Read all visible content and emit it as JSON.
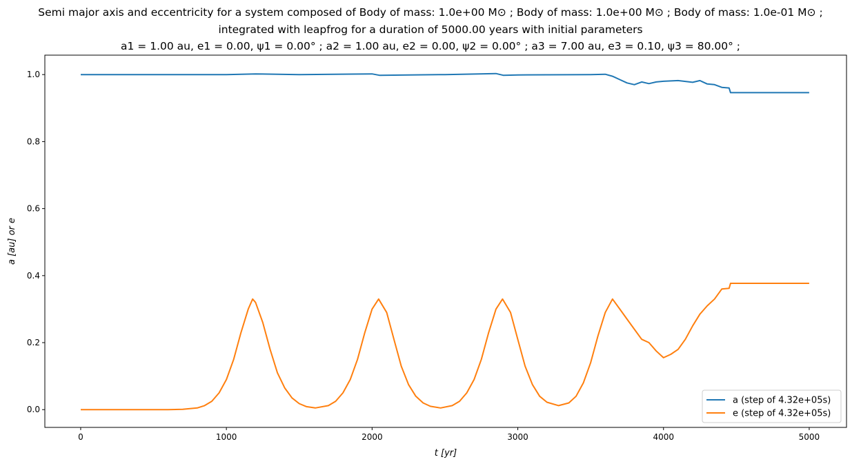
{
  "chart_data": {
    "type": "line",
    "title_lines": [
      "Semi major axis and eccentricity for a system composed of Body of mass: 1.0e+00 M⊙ ; Body of mass: 1.0e+00 M⊙ ; Body of mass: 1.0e-01 M⊙ ;",
      "integrated with leapfrog for a duration of 5000.00 years with initial parameters",
      "a1 = 1.00 au, e1 = 0.00, ψ1 = 0.00° ; a2 = 1.00 au, e2 = 0.00, ψ2 = 0.00° ; a3 = 7.00 au, e3 = 0.10, ψ3 = 80.00° ;"
    ],
    "xlabel": "t [yr]",
    "ylabel": "a [au] or e",
    "xlim": [
      -246,
      5256
    ],
    "ylim": [
      -0.053,
      1.058
    ],
    "xticks": [
      0,
      1000,
      2000,
      3000,
      4000,
      5000
    ],
    "yticks": [
      0.0,
      0.2,
      0.4,
      0.6,
      0.8,
      1.0
    ],
    "ytick_labels": [
      "0.0",
      "0.2",
      "0.4",
      "0.6",
      "0.8",
      "1.0"
    ],
    "grid": false,
    "legend_position": "lower-right",
    "series": [
      {
        "name": "a (step of 4.32e+05s)",
        "color": "#1f77b4",
        "x": [
          0,
          500,
          1000,
          1200,
          1500,
          2000,
          2050,
          2500,
          2850,
          2900,
          3000,
          3500,
          3600,
          3650,
          3700,
          3750,
          3800,
          3850,
          3900,
          3950,
          4000,
          4100,
          4200,
          4250,
          4300,
          4350,
          4400,
          4450,
          4460,
          5000
        ],
        "y": [
          1.0,
          1.0,
          1.0,
          1.002,
          1.0,
          1.002,
          0.998,
          1.0,
          1.003,
          0.998,
          0.999,
          1.0,
          1.001,
          0.995,
          0.985,
          0.975,
          0.97,
          0.978,
          0.973,
          0.978,
          0.98,
          0.982,
          0.977,
          0.982,
          0.972,
          0.97,
          0.962,
          0.96,
          0.946,
          0.946
        ]
      },
      {
        "name": "e (step of 4.32e+05s)",
        "color": "#ff7f0e",
        "x": [
          0,
          100,
          200,
          300,
          400,
          500,
          600,
          700,
          800,
          850,
          900,
          950,
          1000,
          1050,
          1100,
          1150,
          1180,
          1200,
          1250,
          1300,
          1350,
          1400,
          1450,
          1500,
          1550,
          1610,
          1700,
          1750,
          1800,
          1850,
          1900,
          1950,
          2000,
          2045,
          2100,
          2150,
          2200,
          2250,
          2300,
          2350,
          2400,
          2470,
          2550,
          2600,
          2650,
          2700,
          2750,
          2800,
          2850,
          2895,
          2950,
          3000,
          3050,
          3100,
          3150,
          3200,
          3280,
          3350,
          3400,
          3450,
          3500,
          3550,
          3600,
          3650,
          3700,
          3750,
          3800,
          3850,
          3900,
          3950,
          4000,
          4050,
          4100,
          4150,
          4200,
          4250,
          4300,
          4350,
          4400,
          4450,
          4460,
          5000
        ],
        "y": [
          0,
          0,
          0,
          0,
          0,
          0,
          0,
          0.001,
          0.005,
          0.012,
          0.025,
          0.05,
          0.09,
          0.15,
          0.23,
          0.3,
          0.33,
          0.32,
          0.26,
          0.18,
          0.11,
          0.065,
          0.035,
          0.018,
          0.009,
          0.005,
          0.012,
          0.025,
          0.05,
          0.09,
          0.15,
          0.23,
          0.3,
          0.33,
          0.29,
          0.21,
          0.13,
          0.075,
          0.04,
          0.02,
          0.01,
          0.005,
          0.012,
          0.025,
          0.05,
          0.09,
          0.15,
          0.23,
          0.3,
          0.33,
          0.29,
          0.21,
          0.13,
          0.075,
          0.04,
          0.022,
          0.012,
          0.02,
          0.04,
          0.08,
          0.14,
          0.22,
          0.29,
          0.33,
          0.3,
          0.27,
          0.24,
          0.21,
          0.2,
          0.175,
          0.155,
          0.165,
          0.18,
          0.21,
          0.25,
          0.285,
          0.31,
          0.33,
          0.36,
          0.362,
          0.377,
          0.377
        ]
      }
    ]
  }
}
